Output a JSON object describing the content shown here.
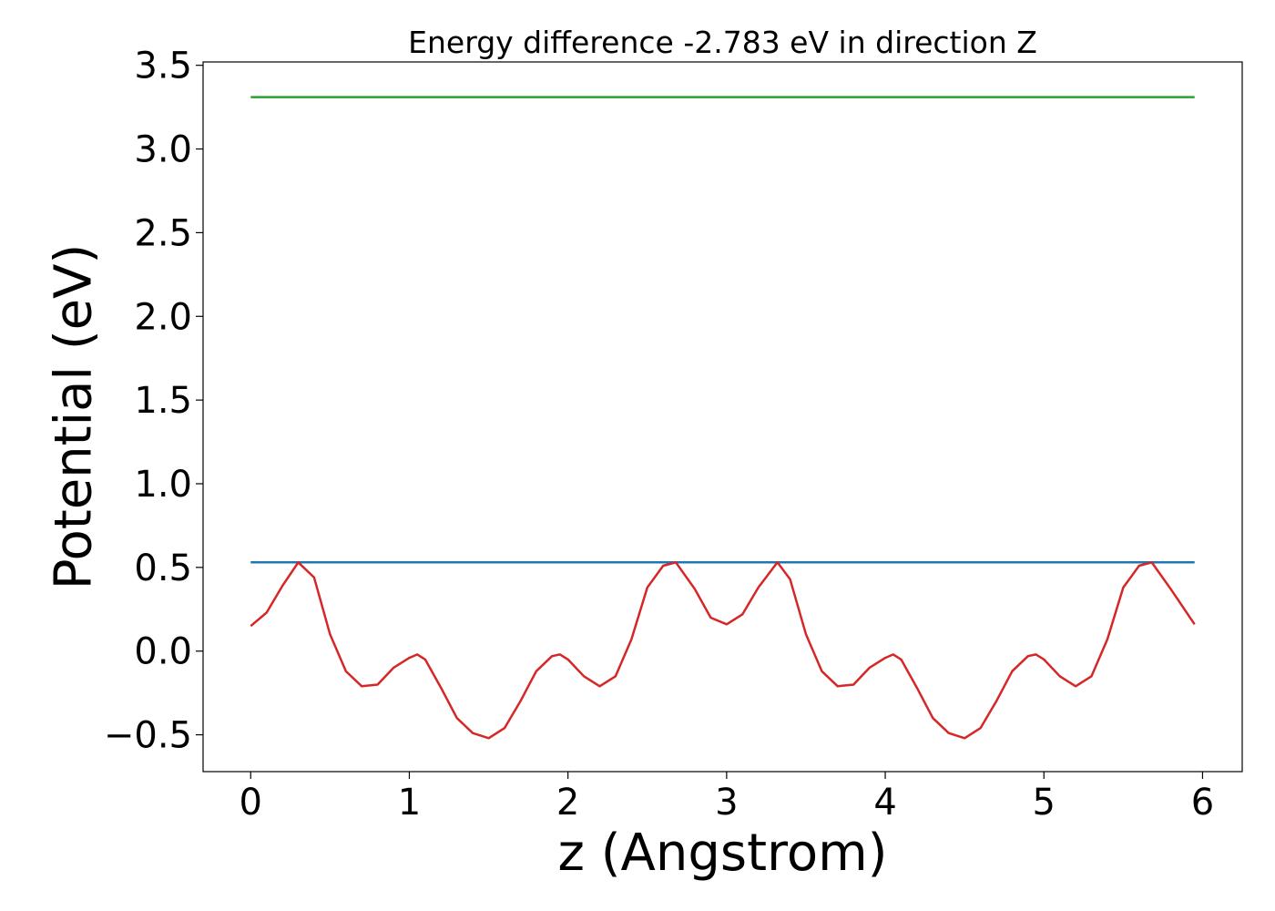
{
  "chart_data": {
    "type": "line",
    "title": "Energy difference -2.783 eV in direction Z",
    "xlabel": "z (Angstrom)",
    "ylabel": "Potential (eV)",
    "xlim": [
      -0.3,
      6.25
    ],
    "ylim": [
      -0.72,
      3.52
    ],
    "xticks": [
      0,
      1,
      2,
      3,
      4,
      5,
      6
    ],
    "xtick_labels": [
      "0",
      "1",
      "2",
      "3",
      "4",
      "5",
      "6"
    ],
    "yticks": [
      -0.5,
      0.0,
      0.5,
      1.0,
      1.5,
      2.0,
      2.5,
      3.0,
      3.5
    ],
    "ytick_labels": [
      "−0.5",
      "0.0",
      "0.5",
      "1.0",
      "1.5",
      "2.0",
      "2.5",
      "3.0",
      "3.5"
    ],
    "grid": false,
    "series": [
      {
        "color": "#2ca02c",
        "x": [
          0,
          5.95
        ],
        "y": [
          3.31,
          3.31
        ]
      },
      {
        "color": "#1f77b4",
        "x": [
          0,
          5.95
        ],
        "y": [
          0.53,
          0.53
        ]
      },
      {
        "color": "#d62728",
        "x": [
          0.0,
          0.1,
          0.2,
          0.3,
          0.4,
          0.5,
          0.6,
          0.7,
          0.8,
          0.9,
          1.0,
          1.05,
          1.1,
          1.2,
          1.3,
          1.4,
          1.5,
          1.6,
          1.7,
          1.8,
          1.9,
          1.95,
          2.0,
          2.1,
          2.2,
          2.3,
          2.4,
          2.5,
          2.6,
          2.68,
          2.8,
          2.9,
          3.0,
          3.1,
          3.2,
          3.32,
          3.4,
          3.5,
          3.6,
          3.7,
          3.8,
          3.9,
          4.0,
          4.05,
          4.1,
          4.2,
          4.3,
          4.4,
          4.5,
          4.6,
          4.7,
          4.8,
          4.9,
          4.95,
          5.0,
          5.1,
          5.2,
          5.3,
          5.4,
          5.5,
          5.6,
          5.68,
          5.8,
          5.95
        ],
        "y": [
          0.15,
          0.23,
          0.39,
          0.53,
          0.44,
          0.1,
          -0.12,
          -0.21,
          -0.2,
          -0.1,
          -0.04,
          -0.02,
          -0.05,
          -0.22,
          -0.4,
          -0.49,
          -0.52,
          -0.46,
          -0.3,
          -0.12,
          -0.03,
          -0.02,
          -0.05,
          -0.15,
          -0.21,
          -0.15,
          0.07,
          0.38,
          0.51,
          0.53,
          0.37,
          0.2,
          0.16,
          0.22,
          0.38,
          0.53,
          0.43,
          0.1,
          -0.12,
          -0.21,
          -0.2,
          -0.1,
          -0.04,
          -0.02,
          -0.05,
          -0.22,
          -0.4,
          -0.49,
          -0.52,
          -0.46,
          -0.3,
          -0.12,
          -0.03,
          -0.02,
          -0.05,
          -0.15,
          -0.21,
          -0.15,
          0.07,
          0.38,
          0.51,
          0.53,
          0.37,
          0.16
        ]
      }
    ]
  }
}
